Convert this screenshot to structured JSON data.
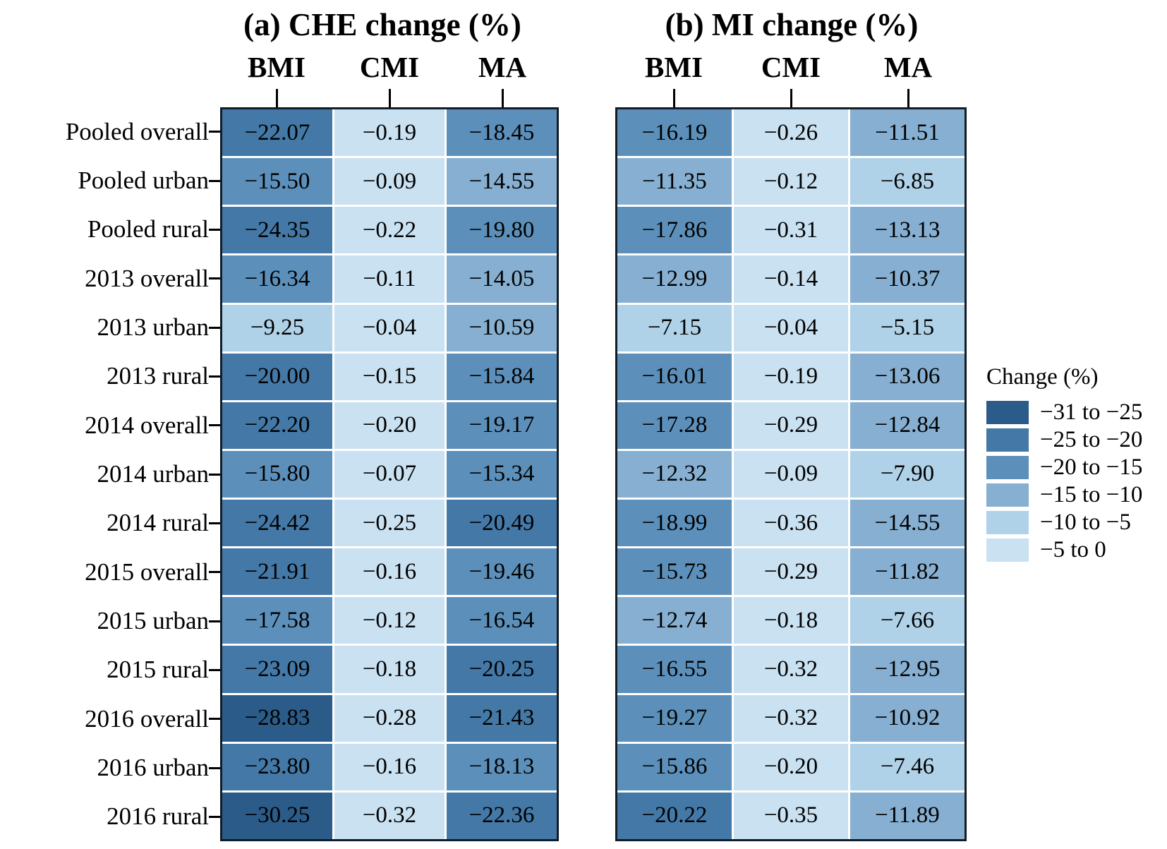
{
  "chart_data": {
    "type": "heatmap",
    "row_labels": [
      "Pooled overall",
      "Pooled urban",
      "Pooled rural",
      "2013 overall",
      "2013 urban",
      "2013 rural",
      "2014 overall",
      "2014 urban",
      "2014 rural",
      "2015 overall",
      "2015 urban",
      "2015 rural",
      "2016 overall",
      "2016 urban",
      "2016 rural"
    ],
    "legend": {
      "title": "Change (%)",
      "bins": [
        {
          "label": "−31 to −25",
          "range": [
            -31,
            -25
          ],
          "color": "#2b5b89"
        },
        {
          "label": "−25 to −20",
          "range": [
            -25,
            -20
          ],
          "color": "#4478a6"
        },
        {
          "label": "−20 to −15",
          "range": [
            -20,
            -15
          ],
          "color": "#5c90ba"
        },
        {
          "label": "−15 to −10",
          "range": [
            -15,
            -10
          ],
          "color": "#86afd1"
        },
        {
          "label": "−10 to −5",
          "range": [
            -10,
            -5
          ],
          "color": "#b0d2e8"
        },
        {
          "label": "−5 to 0",
          "range": [
            -5,
            0
          ],
          "color": "#c9e1f1"
        }
      ]
    },
    "panels": [
      {
        "title": "(a) CHE change (%)",
        "columns": [
          "BMI",
          "CMI",
          "MA"
        ],
        "values": [
          [
            -22.07,
            -0.19,
            -18.45
          ],
          [
            -15.5,
            -0.09,
            -14.55
          ],
          [
            -24.35,
            -0.22,
            -19.8
          ],
          [
            -16.34,
            -0.11,
            -14.05
          ],
          [
            -9.25,
            -0.04,
            -10.59
          ],
          [
            -20.0,
            -0.15,
            -15.84
          ],
          [
            -22.2,
            -0.2,
            -19.17
          ],
          [
            -15.8,
            -0.07,
            -15.34
          ],
          [
            -24.42,
            -0.25,
            -20.49
          ],
          [
            -21.91,
            -0.16,
            -19.46
          ],
          [
            -17.58,
            -0.12,
            -16.54
          ],
          [
            -23.09,
            -0.18,
            -20.25
          ],
          [
            -28.83,
            -0.28,
            -21.43
          ],
          [
            -23.8,
            -0.16,
            -18.13
          ],
          [
            -30.25,
            -0.32,
            -22.36
          ]
        ]
      },
      {
        "title": "(b) MI change (%)",
        "columns": [
          "BMI",
          "CMI",
          "MA"
        ],
        "values": [
          [
            -16.19,
            -0.26,
            -11.51
          ],
          [
            -11.35,
            -0.12,
            -6.85
          ],
          [
            -17.86,
            -0.31,
            -13.13
          ],
          [
            -12.99,
            -0.14,
            -10.37
          ],
          [
            -7.15,
            -0.04,
            -5.15
          ],
          [
            -16.01,
            -0.19,
            -13.06
          ],
          [
            -17.28,
            -0.29,
            -12.84
          ],
          [
            -12.32,
            -0.09,
            -7.9
          ],
          [
            -18.99,
            -0.36,
            -14.55
          ],
          [
            -15.73,
            -0.29,
            -11.82
          ],
          [
            -12.74,
            -0.18,
            -7.66
          ],
          [
            -16.55,
            -0.32,
            -12.95
          ],
          [
            -19.27,
            -0.32,
            -10.92
          ],
          [
            -15.86,
            -0.2,
            -7.46
          ],
          [
            -20.22,
            -0.35,
            -11.89
          ]
        ]
      }
    ]
  }
}
